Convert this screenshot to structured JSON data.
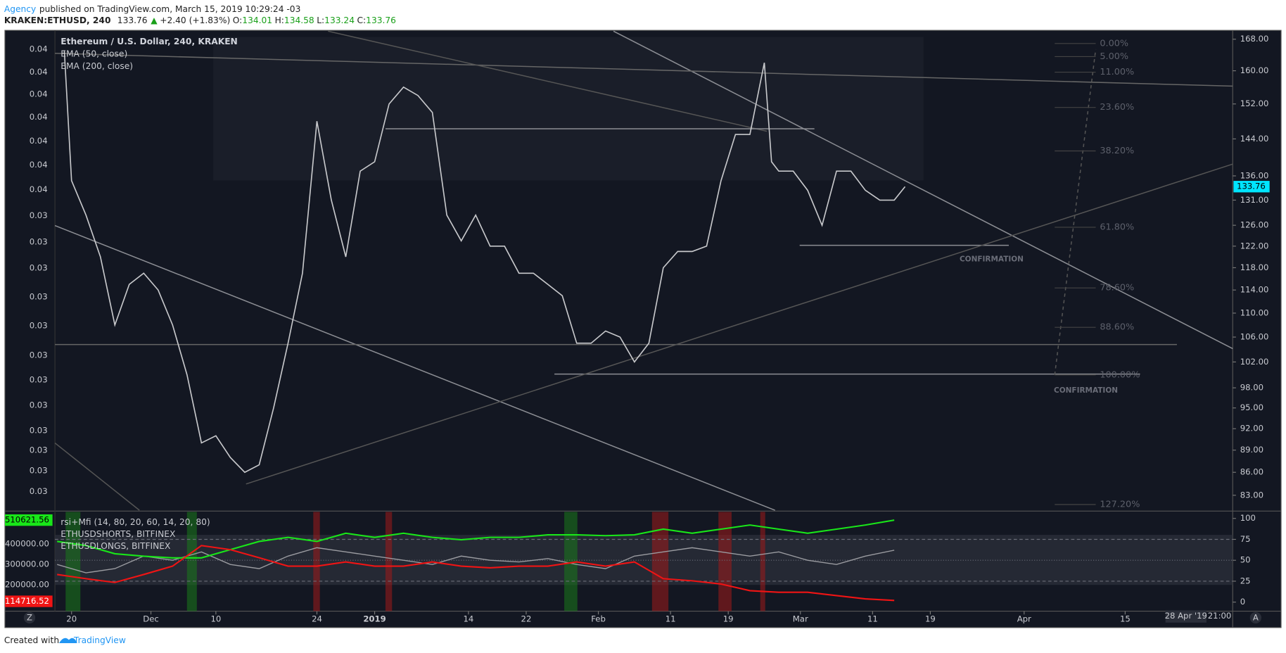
{
  "header": {
    "author": "Agency",
    "published": "published on TradingView.com, March 15, 2019 10:29:24 -03",
    "symbol": "KRAKEN:ETHUSD, 240",
    "last": "133.76",
    "arrow": "▲",
    "change": "+2.40 (+1.83%)",
    "ohlc": [
      {
        "label": "O:",
        "value": "134.01"
      },
      {
        "label": "H:",
        "value": "134.58"
      },
      {
        "label": "L:",
        "value": "133.24"
      },
      {
        "label": "C:",
        "value": "133.76"
      }
    ]
  },
  "chart_data": [
    {
      "type": "line",
      "title": "Ethereum / U.S. Dollar, 240, KRAKEN",
      "studies": [
        "EMA (50, close)",
        "EMA (200, close)"
      ],
      "x": [
        -1,
        0,
        2,
        4,
        6,
        8,
        10,
        12,
        14,
        16,
        18,
        20,
        22,
        24,
        26,
        28,
        30,
        32,
        34,
        36,
        38,
        40,
        42,
        44,
        46,
        48,
        50,
        52,
        54,
        56,
        58,
        60,
        62,
        64,
        66,
        68,
        70,
        72,
        74,
        76,
        78,
        80,
        82,
        84,
        86,
        88,
        90,
        92,
        94,
        96,
        97,
        98,
        100,
        102,
        104,
        106,
        108,
        110,
        112,
        114,
        115.5
      ],
      "values": [
        165,
        135,
        128,
        120,
        108,
        115,
        117,
        114,
        108,
        100,
        90,
        91,
        88,
        86,
        87,
        95,
        105,
        117,
        148,
        131,
        120,
        137,
        139,
        152,
        156,
        154,
        150,
        128,
        123,
        128,
        122,
        122,
        117,
        117,
        115,
        113,
        105,
        105,
        107,
        106,
        102,
        105,
        118,
        121,
        121,
        122,
        135,
        145,
        145,
        162,
        139,
        137,
        137,
        133,
        126,
        137,
        137,
        133,
        131,
        131,
        133.76
      ],
      "color": "#c8c9cc",
      "last_value": 133.76,
      "log_scale": true,
      "ylim": [
        81.1,
        170.1
      ],
      "yticks": [
        {
          "value": 168,
          "label": "168.00"
        },
        {
          "value": 160,
          "label": "160.00"
        },
        {
          "value": 152,
          "label": "152.00"
        },
        {
          "value": 144,
          "label": "144.00"
        },
        {
          "value": 136,
          "label": "136.00"
        },
        {
          "value": 131,
          "label": "131.00"
        },
        {
          "value": 126,
          "label": "126.00"
        },
        {
          "value": 122,
          "label": "122.00"
        },
        {
          "value": 118,
          "label": "118.00"
        },
        {
          "value": 114,
          "label": "114.00"
        },
        {
          "value": 110,
          "label": "110.00"
        },
        {
          "value": 106,
          "label": "106.00"
        },
        {
          "value": 102,
          "label": "102.00"
        },
        {
          "value": 98,
          "label": "98.00"
        },
        {
          "value": 95,
          "label": "95.00"
        },
        {
          "value": 92,
          "label": "92.00"
        },
        {
          "value": 89,
          "label": "89.00"
        },
        {
          "value": 86,
          "label": "86.00"
        },
        {
          "value": 83,
          "label": "83.00"
        }
      ],
      "xlim": [
        -2.3,
        160.9
      ],
      "xticks": [
        {
          "value": 0,
          "label": "20"
        },
        {
          "value": 11,
          "label": "Dec"
        },
        {
          "value": 20,
          "label": "10"
        },
        {
          "value": 34,
          "label": "24"
        },
        {
          "value": 42,
          "label": "2019"
        },
        {
          "value": 55,
          "label": "14"
        },
        {
          "value": 63,
          "label": "22"
        },
        {
          "value": 73,
          "label": "Feb"
        },
        {
          "value": 83,
          "label": "11"
        },
        {
          "value": 91,
          "label": "19"
        },
        {
          "value": 101,
          "label": "Mar"
        },
        {
          "value": 111,
          "label": "11"
        },
        {
          "value": 119,
          "label": "19"
        },
        {
          "value": 132,
          "label": "Apr"
        },
        {
          "value": 146,
          "label": "15"
        }
      ]
    },
    {
      "type": "line",
      "left_labels": [
        "510621.56",
        "400000.00",
        "300000.00",
        "200000.00",
        "114716.52"
      ],
      "x": [
        -2,
        2,
        6,
        10,
        14,
        18,
        22,
        26,
        30,
        34,
        38,
        42,
        46,
        50,
        54,
        58,
        62,
        66,
        70,
        74,
        78,
        82,
        86,
        90,
        94,
        98,
        102,
        106,
        110,
        114
      ],
      "series": [
        {
          "name": "rsi+Mfi (14, 80, 20, 60, 14, 20, 80)",
          "color": "#9a9ba0",
          "values": [
            45,
            35,
            40,
            55,
            50,
            60,
            45,
            40,
            55,
            65,
            60,
            55,
            50,
            45,
            55,
            50,
            48,
            52,
            45,
            40,
            55,
            60,
            65,
            60,
            55,
            60,
            50,
            45,
            55,
            62
          ]
        },
        {
          "name": "ETHUSDSHORTS, BITFINEX",
          "color": "#19e619",
          "values": [
            72.5,
            67.6,
            57.8,
            54.9,
            52.9,
            52.9,
            62.7,
            72.5,
            77.4,
            72.5,
            82.3,
            77.4,
            82.3,
            77.4,
            74.5,
            77.4,
            77.4,
            80.4,
            80.4,
            79.4,
            80.4,
            87.2,
            82.3,
            87.2,
            92.1,
            87.2,
            82.3,
            87.2,
            92.1,
            98
          ]
        },
        {
          "name": "ETHUSDLONGS, BITFINEX",
          "color": "#f01414",
          "values": [
            33,
            28,
            23.5,
            33,
            43,
            67.6,
            62.7,
            53,
            43,
            43,
            48,
            43,
            43,
            48,
            43,
            41,
            43,
            43,
            48,
            43,
            48,
            28,
            25.5,
            21.6,
            13.7,
            11.8,
            11.8,
            7.8,
            3.9,
            2
          ]
        }
      ],
      "ylim": [
        -10.8,
        107.8
      ],
      "yticks": [
        0,
        25,
        50,
        75,
        100
      ]
    }
  ],
  "left_axis_labels": [
    "0.04",
    "0.04",
    "0.04",
    "0.04",
    "0.04",
    "0.04",
    "0.04",
    "0.03",
    "0.03",
    "0.03",
    "0.03",
    "0.03",
    "0.03",
    "0.03",
    "0.03",
    "0.03",
    "0.03",
    "0.03",
    "0.03"
  ],
  "fib_labels": [
    "0.00%",
    "5.00%",
    "11.00%",
    "23.60%",
    "38.20%",
    "61.80%",
    "78.60%",
    "88.60%",
    "100.00%",
    "127.20%"
  ],
  "annotations": [
    "CONFIRMATION",
    "CONFIRMATION"
  ],
  "crosshair": {
    "date": "28 Apr '19",
    "time": "21:00"
  },
  "buttons": [
    "Z",
    "A"
  ],
  "footer": {
    "text": "Created with",
    "brand": "TradingView"
  }
}
